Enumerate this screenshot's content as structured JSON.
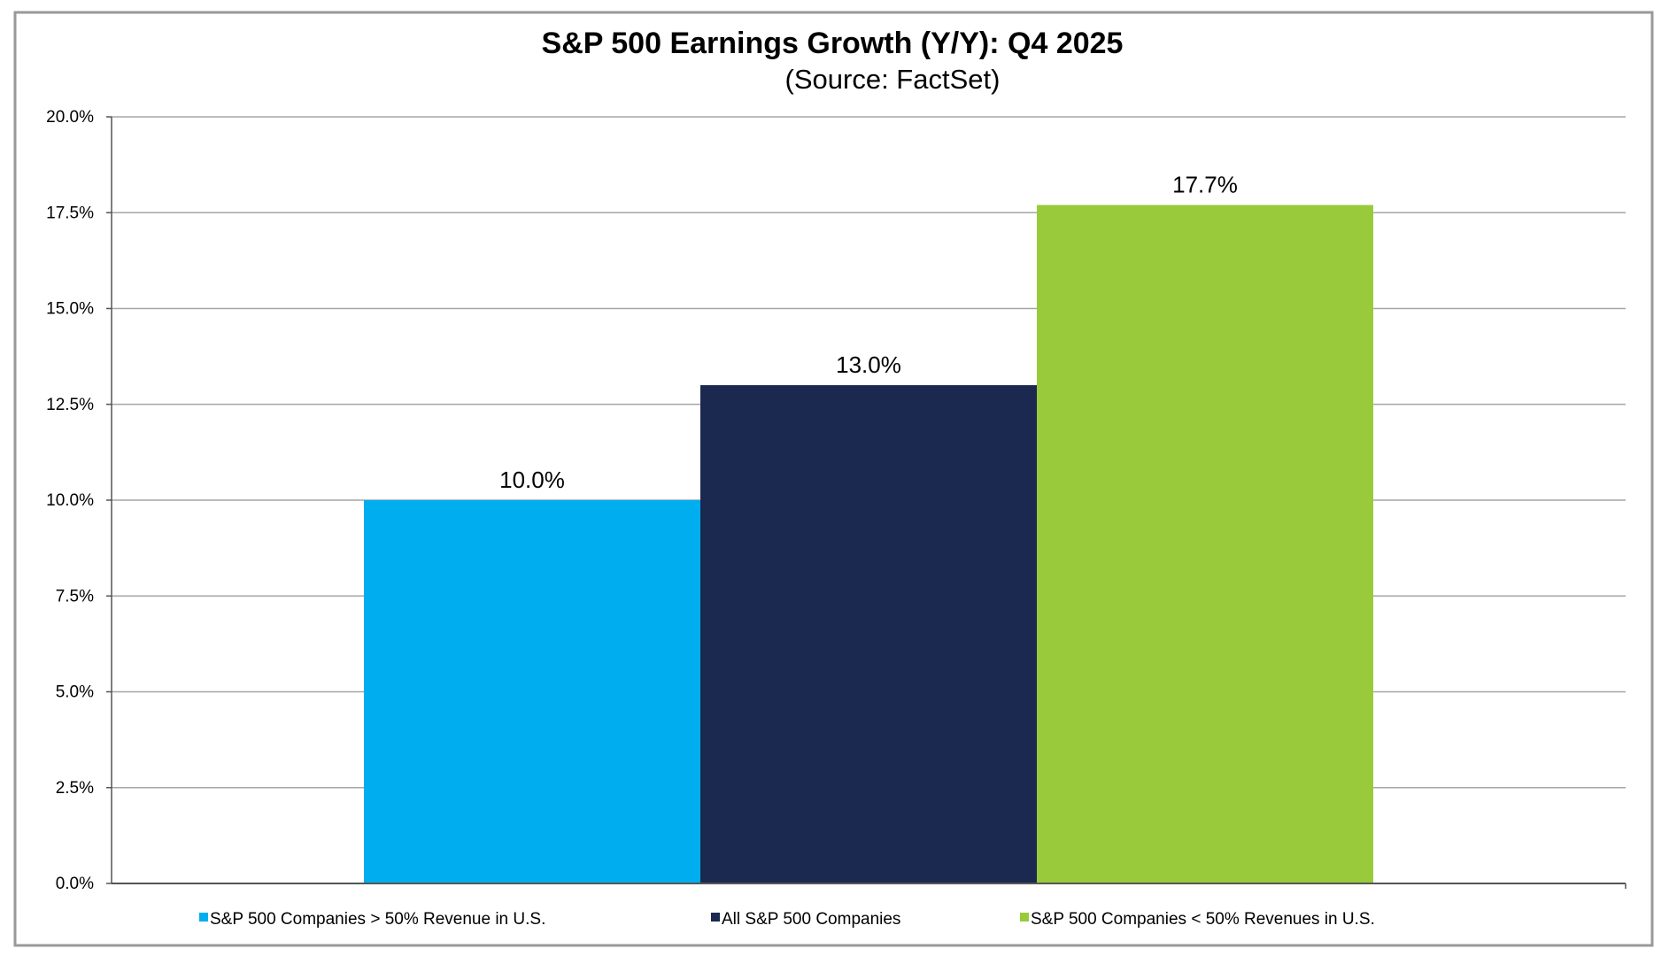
{
  "chart_data": {
    "type": "bar",
    "title": "S&P 500 Earnings Growth (Y/Y): Q4 2025",
    "subtitle": "(Source: FactSet)",
    "xlabel": "",
    "ylabel": "",
    "ylim": [
      0,
      20
    ],
    "yticks": [
      0,
      2.5,
      5,
      7.5,
      10,
      12.5,
      15,
      17.5,
      20
    ],
    "ytick_labels": [
      "0.0%",
      "2.5%",
      "5.0%",
      "7.5%",
      "10.0%",
      "12.5%",
      "15.0%",
      "17.5%",
      "20.0%"
    ],
    "grid": true,
    "legend_position": "bottom",
    "series": [
      {
        "name": "S&P 500 Companies > 50% Revenue in U.S.",
        "value": 10.0,
        "label": "10.0%",
        "color": "#00AEEF"
      },
      {
        "name": "All S&P 500 Companies",
        "value": 13.0,
        "label": "13.0%",
        "color": "#1B2850"
      },
      {
        "name": "S&P 500 Companies < 50% Revenues in U.S.",
        "value": 17.7,
        "label": "17.7%",
        "color": "#99CA3C"
      }
    ]
  }
}
